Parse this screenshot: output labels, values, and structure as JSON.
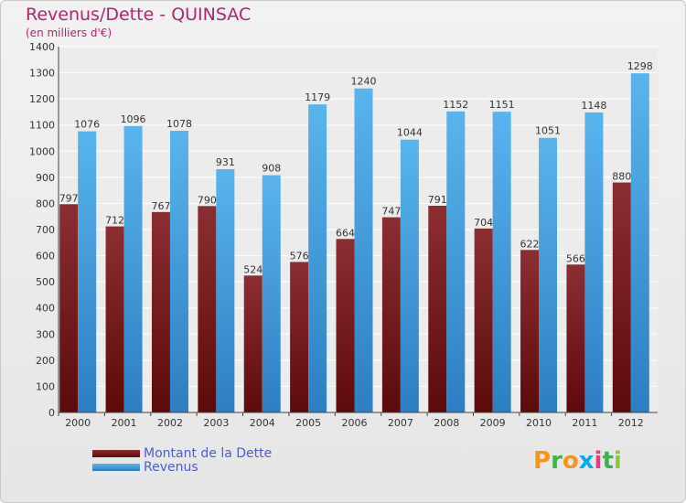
{
  "header": {
    "title": "Revenus/Dette - QUINSAC",
    "subtitle": "(en milliers d'€)"
  },
  "legend": {
    "debt_label": "Montant de la Dette",
    "revenue_label": "Revenus"
  },
  "brand": {
    "letters": [
      "P",
      "r",
      "o",
      "x",
      "i",
      "t",
      "i"
    ],
    "colors": [
      "#f7941d",
      "#39b54a",
      "#f7941d",
      "#00aeef",
      "#e8398b",
      "#39b54a",
      "#8dc63f"
    ]
  },
  "colors": {
    "debt_top": "#8b2e32",
    "debt_bottom": "#5c0a0a",
    "revenue_top": "#5ab4ec",
    "revenue_bottom": "#2d7ec2"
  },
  "chart_data": {
    "type": "bar",
    "title": "Revenus/Dette - QUINSAC",
    "subtitle": "(en milliers d'€)",
    "xlabel": "",
    "ylabel": "",
    "ylim": [
      0,
      1400
    ],
    "yticks": [
      0,
      100,
      200,
      300,
      400,
      500,
      600,
      700,
      800,
      900,
      1000,
      1100,
      1200,
      1300,
      1400
    ],
    "grid": true,
    "legend_position": "bottom-left",
    "categories": [
      "2000",
      "2001",
      "2002",
      "2003",
      "2004",
      "2005",
      "2006",
      "2007",
      "2008",
      "2009",
      "2010",
      "2011",
      "2012"
    ],
    "series": [
      {
        "name": "Montant de la Dette",
        "values": [
          797,
          712,
          767,
          790,
          524,
          576,
          664,
          747,
          791,
          704,
          622,
          566,
          880
        ]
      },
      {
        "name": "Revenus",
        "values": [
          1076,
          1096,
          1078,
          931,
          908,
          1179,
          1240,
          1044,
          1152,
          1151,
          1051,
          1148,
          1298
        ]
      }
    ]
  }
}
